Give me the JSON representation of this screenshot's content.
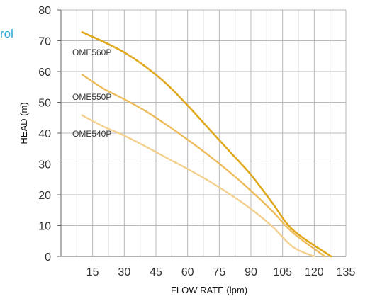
{
  "header": {
    "text_fragment": "rol"
  },
  "chart_data": {
    "type": "line",
    "xlabel": "FLOW RATE (lpm)",
    "ylabel": "HEAD (m)",
    "xlim": [
      0,
      135
    ],
    "ylim": [
      0,
      80
    ],
    "xticks": [
      15,
      30,
      45,
      60,
      75,
      90,
      105,
      120,
      135
    ],
    "yticks": [
      0,
      10,
      20,
      30,
      40,
      50,
      60,
      70,
      80
    ],
    "grid": true,
    "series": [
      {
        "name": "OME560P",
        "color": "#e0a81e",
        "x": [
          10,
          20,
          30,
          40,
          50,
          60,
          70,
          80,
          90,
          100,
          110,
          120,
          125,
          128
        ],
        "y": [
          72.8,
          69.7,
          66.2,
          61.6,
          56,
          49,
          41.5,
          34,
          26.5,
          17.5,
          8.5,
          0,
          0,
          0
        ]
      },
      {
        "name": "OME550P",
        "color": "#eebc5c",
        "x": [
          10,
          20,
          30,
          40,
          50,
          60,
          70,
          80,
          90,
          100,
          110,
          120,
          125
        ],
        "y": [
          59,
          54.5,
          51,
          47.2,
          42.7,
          37.9,
          32.8,
          27.3,
          21.3,
          14.8,
          7.6,
          0,
          0
        ]
      },
      {
        "name": "OME540P",
        "color": "#f3d08e",
        "x": [
          10,
          20,
          30,
          40,
          50,
          60,
          70,
          80,
          90,
          100,
          110,
          120
        ],
        "y": [
          45.8,
          42.2,
          39.2,
          35.7,
          32,
          28.4,
          24.5,
          20.2,
          15.4,
          9.8,
          3,
          0
        ]
      }
    ]
  }
}
